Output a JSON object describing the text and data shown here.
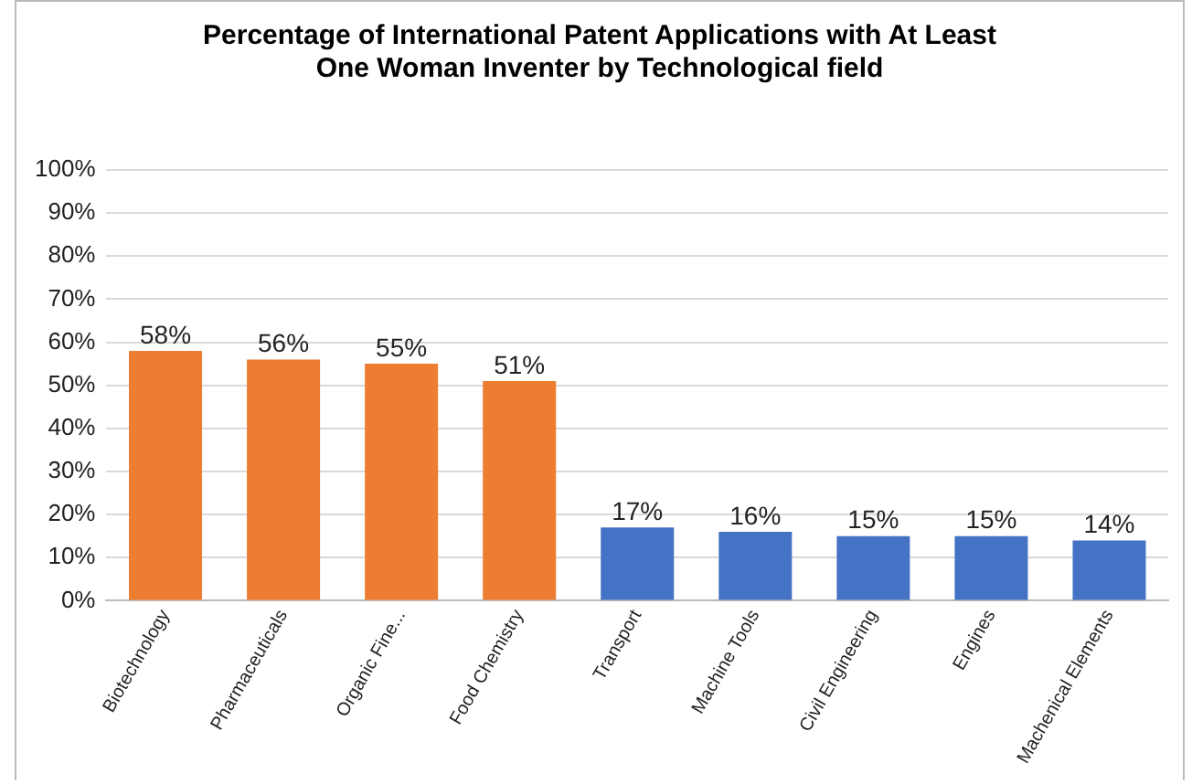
{
  "chart_data": {
    "type": "bar",
    "title": "Percentage of International Patent Applications with At Least One Woman Inventer by Technological field",
    "categories": [
      "Biotechnology",
      "Pharmaceuticals",
      "Organic Fine...",
      "Food Chemistry",
      "Transport",
      "Machine Tools",
      "Civil Engineering",
      "Engines",
      "Machenical Elements"
    ],
    "values": [
      58,
      56,
      55,
      51,
      17,
      16,
      15,
      15,
      14
    ],
    "colors": [
      "#ed7d31",
      "#ed7d31",
      "#ed7d31",
      "#ed7d31",
      "#4472c4",
      "#4472c4",
      "#4472c4",
      "#4472c4",
      "#4472c4"
    ],
    "value_labels": [
      "58%",
      "56%",
      "55%",
      "51%",
      "17%",
      "16%",
      "15%",
      "15%",
      "14%"
    ],
    "ylim": [
      0,
      100
    ],
    "yticks": [
      {
        "value": 0,
        "label": "0%"
      },
      {
        "value": 10,
        "label": "10%"
      },
      {
        "value": 20,
        "label": "20%"
      },
      {
        "value": 30,
        "label": "30%"
      },
      {
        "value": 40,
        "label": "40%"
      },
      {
        "value": 50,
        "label": "50%"
      },
      {
        "value": 60,
        "label": "60%"
      },
      {
        "value": 70,
        "label": "70%"
      },
      {
        "value": 80,
        "label": "80%"
      },
      {
        "value": 90,
        "label": "90%"
      },
      {
        "value": 100,
        "label": "100%"
      }
    ],
    "grid": "y",
    "legend": false
  }
}
